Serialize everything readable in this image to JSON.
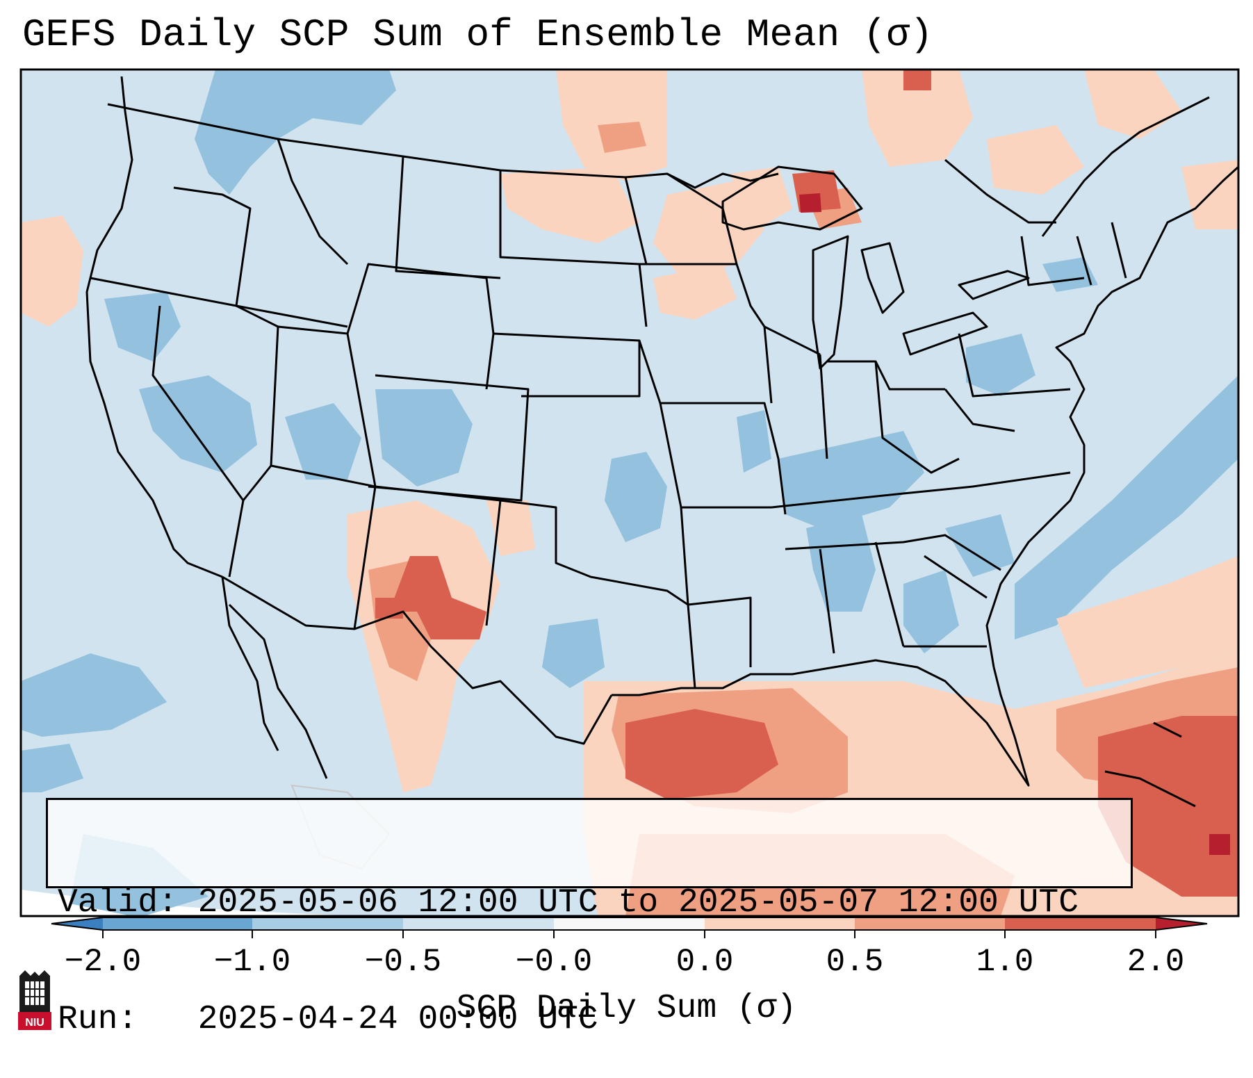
{
  "title": "GEFS Daily SCP Sum of Ensemble Mean (σ)",
  "info": {
    "valid_line": "Valid: 2025-05-06 12:00 UTC to 2025-05-07 12:00 UTC",
    "run_line": "Run:   2025-04-24 00:00 UTC"
  },
  "colorbar": {
    "label": "SCP Daily Sum (σ)",
    "ticks": [
      "−2.0",
      "−1.0",
      "−0.5",
      "−0.0",
      "0.0",
      "0.5",
      "1.0",
      "2.0"
    ],
    "colors": [
      "#3a7fbf",
      "#6aa6d2",
      "#a6cde4",
      "#d0e3ef",
      "#f7f7f7",
      "#fbd4c0",
      "#efa082",
      "#d9604f",
      "#b51f2e"
    ],
    "extend": "both"
  },
  "map": {
    "region": "CONUS",
    "colors": {
      "ocean_background": "#d0e3ef",
      "negative_weak": "#d0e3ef",
      "negative_mid": "#94c1de",
      "positive_weak": "#fbd4c0",
      "positive_mid": "#efa082",
      "positive_strong": "#d9604f",
      "positive_max": "#b51f2e",
      "borders": "#000000"
    },
    "features": [
      "state-borders",
      "country-borders",
      "coastlines"
    ]
  },
  "logo": {
    "text": "NIU",
    "icon": "niu-seal-icon"
  }
}
